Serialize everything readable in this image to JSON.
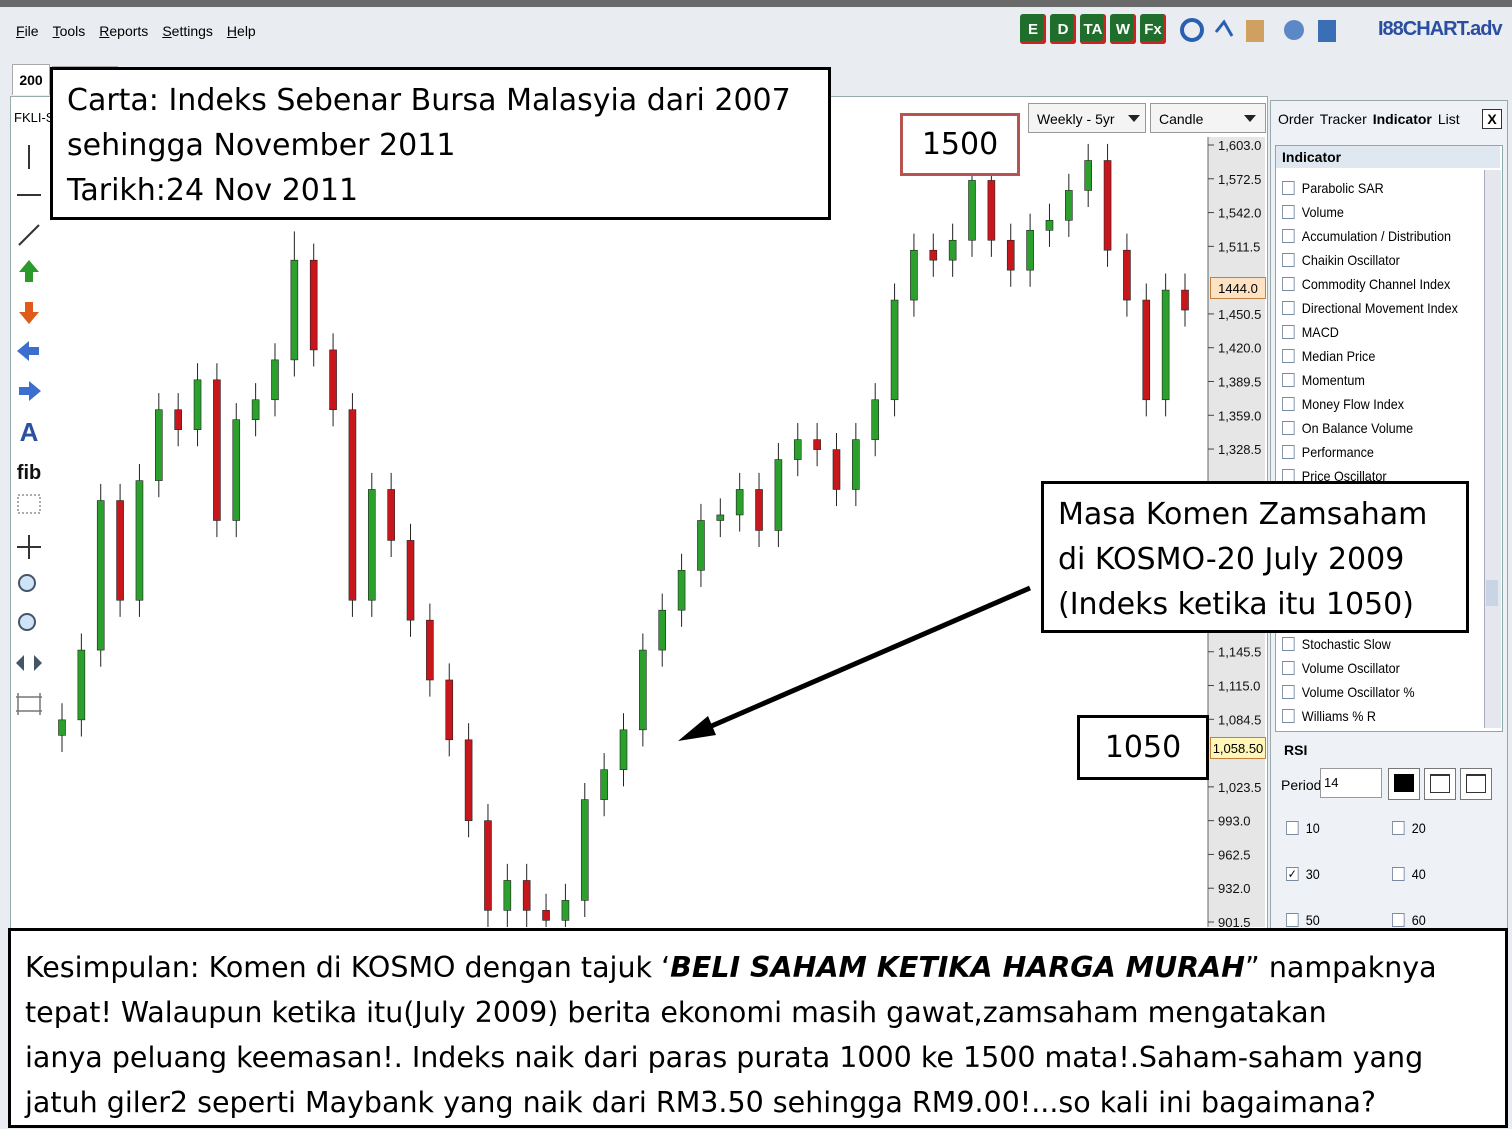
{
  "menu": [
    "File",
    "Tools",
    "Reports",
    "Settings",
    "Help"
  ],
  "toolbar_icons": [
    "E",
    "D",
    "TA",
    "W",
    "Fx"
  ],
  "logo": "I88CHART.adv",
  "tab": "200",
  "symbol": "FKLI-S",
  "period_select": "Weekly - 5yr",
  "chart_style_select": "Candle",
  "text_tools": [
    "A",
    "fib"
  ],
  "panel_tabs": [
    "Order",
    "Tracker",
    "Indicator",
    "List"
  ],
  "panel_close": "X",
  "indicator_header": "Indicator",
  "indicators_top": [
    "Parabolic SAR",
    "Volume",
    "Accumulation / Distribution",
    "Chaikin Oscillator",
    "Commodity Channel Index",
    "Directional Movement Index",
    "MACD",
    "Median Price",
    "Momentum",
    "Money Flow Index",
    "On Balance Volume",
    "Performance",
    "Price Oscillator"
  ],
  "indicators_bottom": [
    "Stochastic Slow",
    "Volume Oscillator",
    "Volume Oscillator %",
    "Williams % R"
  ],
  "rsi": {
    "title": "RSI",
    "period_label": "Period",
    "period": 14,
    "options": [
      {
        "label": 10,
        "checked": false
      },
      {
        "label": 20,
        "checked": false
      },
      {
        "label": 30,
        "checked": true
      },
      {
        "label": 40,
        "checked": false
      },
      {
        "label": 50,
        "checked": false
      },
      {
        "label": 60,
        "checked": false
      }
    ]
  },
  "price_tags": [
    "1444.0",
    "1,058.50"
  ],
  "annotations": {
    "title_lines": [
      "Carta: Indeks Sebenar Bursa Malasyia dari 2007",
      "sehingga November 2011",
      "Tarikh:24 Nov 2011"
    ],
    "high_label": "1500",
    "low_label": "1050",
    "comment_lines": [
      "Masa Komen Zamsaham",
      "di KOSMO-20 July 2009",
      "(Indeks ketika itu 1050)"
    ]
  },
  "conclusion": {
    "first": {
      "before": "Kesimpulan: Komen di KOSMO dengan tajuk ‘",
      "emphasis": "BELI SAHAM KETIKA HARGA MURAH",
      "after": "” nampaknya"
    },
    "lines": [
      "tepat! Walaupun ketika itu(July 2009)   berita ekonomi masih gawat,zamsaham mengatakan",
      "ianya peluang keemasan!. Indeks naik dari paras purata 1000 ke 1500 mata!.Saham-saham yang",
      "jatuh giler2 seperti Maybank yang naik dari RM3.50 sehingga RM9.00!...so kali ini bagaimana?"
    ]
  },
  "chart_data": {
    "type": "candlestick",
    "up_color": "#2ca02c",
    "down_color": "#c8161d",
    "ylim": [
      901.5,
      1603
    ],
    "yticks": [
      {
        "value": 1603,
        "label": "1,603.0"
      },
      {
        "value": 1572.5,
        "label": "1,572.5"
      },
      {
        "value": 1542,
        "label": "1,542.0"
      },
      {
        "value": 1511.5,
        "label": "1,511.5"
      },
      {
        "value": 1450.5,
        "label": "1,450.5"
      },
      {
        "value": 1420,
        "label": "1,420.0"
      },
      {
        "value": 1389.5,
        "label": "1,389.5"
      },
      {
        "value": 1359,
        "label": "1,359.0"
      },
      {
        "value": 1328.5,
        "label": "1,328.5"
      },
      {
        "value": 1145.5,
        "label": "1,145.5"
      },
      {
        "value": 1115,
        "label": "1,115.0"
      },
      {
        "value": 1084.5,
        "label": "1,084.5"
      },
      {
        "value": 1023.5,
        "label": "1,023.5"
      },
      {
        "value": 993,
        "label": "993.0"
      },
      {
        "value": 962.5,
        "label": "962.5"
      },
      {
        "value": 932,
        "label": "932.0"
      },
      {
        "value": 901.5,
        "label": "901.5"
      }
    ],
    "open": [
      1070,
      1084,
      1147,
      1282,
      1192,
      1300,
      1364,
      1346,
      1391,
      1264,
      1355,
      1373,
      1409,
      1499,
      1418,
      1364,
      1192,
      1292,
      1246,
      1174,
      1120,
      1066,
      993,
      912,
      939,
      912,
      903,
      921,
      1012,
      1039,
      1075,
      1147,
      1183,
      1219,
      1264,
      1269,
      1292,
      1255,
      1319,
      1337,
      1328,
      1292,
      1337,
      1373,
      1463,
      1508,
      1499,
      1517,
      1571,
      1517,
      1490,
      1526,
      1535,
      1562,
      1589,
      1508,
      1463,
      1373,
      1472
    ],
    "high": [
      1099,
      1162,
      1297,
      1297,
      1315,
      1379,
      1379,
      1406,
      1406,
      1370,
      1388,
      1424,
      1525,
      1514,
      1433,
      1379,
      1307,
      1307,
      1261,
      1189,
      1135,
      1081,
      1008,
      954,
      954,
      927,
      936,
      1027,
      1054,
      1090,
      1162,
      1198,
      1234,
      1279,
      1284,
      1307,
      1307,
      1334,
      1352,
      1352,
      1343,
      1352,
      1388,
      1478,
      1523,
      1523,
      1532,
      1586,
      1586,
      1532,
      1541,
      1550,
      1577,
      1604,
      1604,
      1523,
      1478,
      1487,
      1487
    ],
    "low": [
      1055,
      1069,
      1132,
      1177,
      1177,
      1285,
      1331,
      1331,
      1249,
      1249,
      1340,
      1358,
      1394,
      1403,
      1349,
      1177,
      1177,
      1231,
      1159,
      1105,
      1051,
      978,
      897,
      897,
      897,
      888,
      888,
      906,
      997,
      1024,
      1060,
      1132,
      1168,
      1204,
      1249,
      1254,
      1240,
      1240,
      1304,
      1313,
      1277,
      1277,
      1322,
      1358,
      1448,
      1484,
      1484,
      1502,
      1502,
      1475,
      1475,
      1511,
      1520,
      1547,
      1493,
      1448,
      1358,
      1358,
      1439
    ],
    "close": [
      1084,
      1147,
      1282,
      1192,
      1300,
      1364,
      1346,
      1391,
      1264,
      1355,
      1373,
      1409,
      1499,
      1418,
      1364,
      1192,
      1292,
      1246,
      1174,
      1120,
      1066,
      993,
      912,
      939,
      912,
      903,
      921,
      1012,
      1039,
      1075,
      1147,
      1183,
      1219,
      1264,
      1269,
      1292,
      1255,
      1319,
      1337,
      1328,
      1292,
      1337,
      1373,
      1463,
      1508,
      1499,
      1517,
      1571,
      1517,
      1490,
      1526,
      1535,
      1562,
      1589,
      1508,
      1463,
      1373,
      1472,
      1454
    ]
  }
}
